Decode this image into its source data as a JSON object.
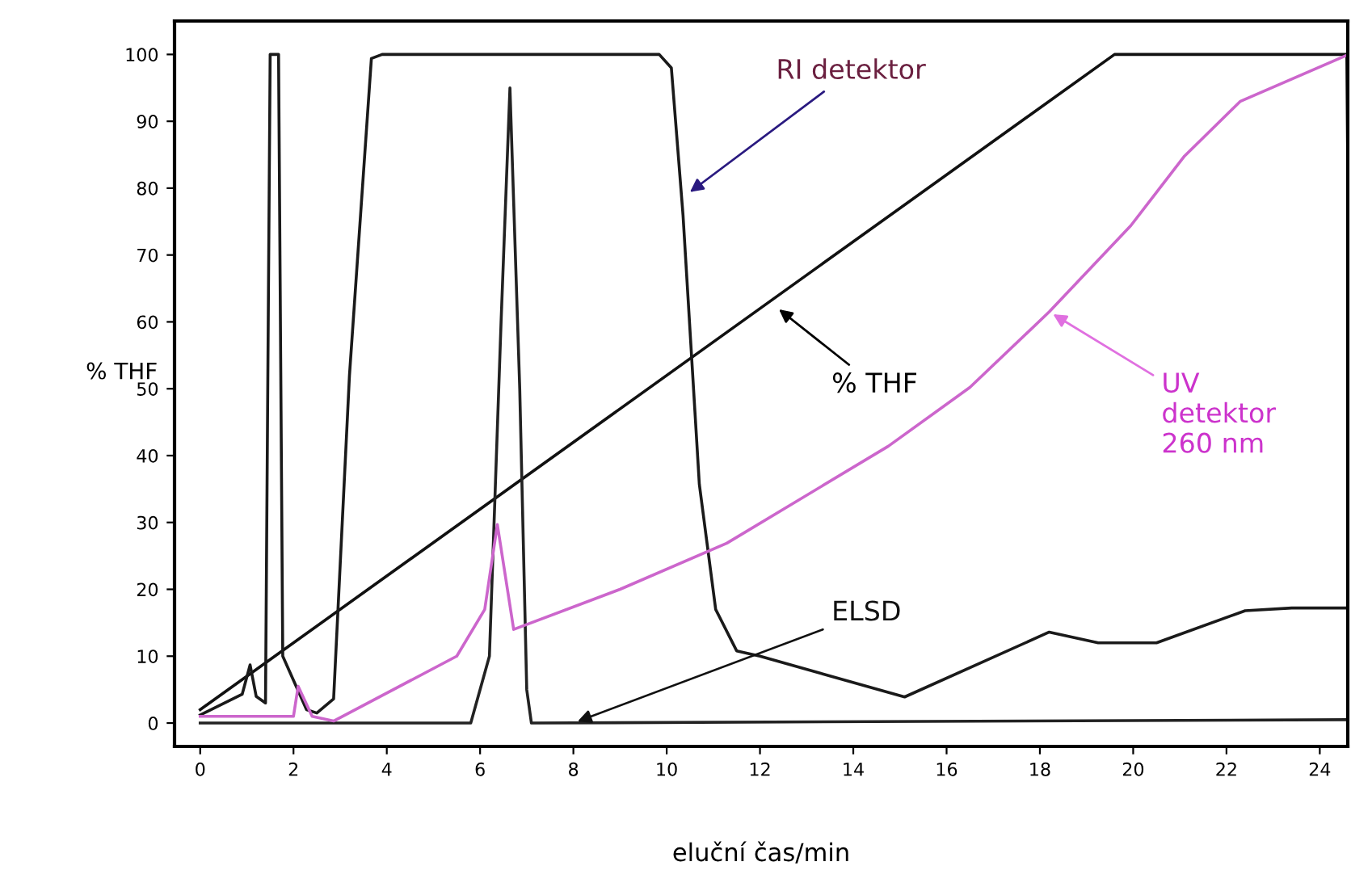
{
  "chart_data": {
    "type": "line",
    "xlabel": "eluční čas/min",
    "ylabel": "% THF",
    "xlim": [
      -0.55,
      24.6
    ],
    "ylim": [
      -3.5,
      105
    ],
    "xticks": [
      0,
      2,
      4,
      6,
      8,
      10,
      12,
      14,
      16,
      18,
      20,
      22,
      24
    ],
    "yticks": [
      0,
      10,
      20,
      30,
      40,
      50,
      60,
      70,
      80,
      90,
      100
    ],
    "grid": false,
    "legend": false,
    "marker": "none",
    "line_style": "solid",
    "series": [
      {
        "color": "#111111",
        "x": [
          0,
          19.6,
          24.58,
          24.6
        ],
        "values": [
          2,
          100,
          100,
          84
        ]
      },
      {
        "color": "#1a1a1a",
        "x": [
          0,
          0.9,
          1.07,
          1.2,
          1.4,
          1.5,
          1.68,
          1.77,
          2.28,
          2.5,
          2.86,
          3.2,
          3.67,
          3.9,
          9.84,
          10.1,
          10.35,
          10.7,
          11.05,
          11.5,
          12,
          15.1,
          18.2,
          19.25,
          20.5,
          22.4,
          23.4,
          24.6
        ],
        "values": [
          1.2,
          4.3,
          8.7,
          4,
          3,
          100,
          100,
          10,
          2,
          1.5,
          3.6,
          52,
          99.4,
          100,
          100,
          98,
          76,
          35.7,
          17,
          10.8,
          10,
          3.9,
          13.6,
          12,
          12,
          16.8,
          17.2,
          17.2
        ]
      },
      {
        "color": "#222222",
        "x": [
          0,
          5.8,
          6.2,
          6.45,
          6.64,
          6.85,
          7.0,
          7.1,
          24.6
        ],
        "values": [
          0,
          0,
          10,
          60,
          95,
          50,
          5,
          0,
          0.5
        ]
      },
      {
        "color": "#cc66cc",
        "x": [
          0,
          2.0,
          2.1,
          2.4,
          2.86,
          5.5,
          6.1,
          6.37,
          6.72,
          9,
          11.29,
          14.75,
          16.5,
          18.2,
          19.95,
          21.1,
          22.3,
          24.55
        ],
        "values": [
          1,
          1,
          5.5,
          1,
          0.3,
          10,
          17,
          29.7,
          14,
          20,
          26.9,
          41.4,
          50.2,
          61.5,
          74.4,
          84.8,
          93,
          99.8
        ]
      }
    ],
    "annotations": [
      {
        "text": "RI detektor",
        "x": 10.42,
        "y": 79
      },
      {
        "text": "% THF",
        "x": 12.33,
        "y": 62.3
      },
      {
        "text": "UV\ndetektor\n260 nm",
        "x": 18.2,
        "y": 61.5
      },
      {
        "text": "ELSD",
        "x": 8.0,
        "y": 0
      }
    ]
  }
}
